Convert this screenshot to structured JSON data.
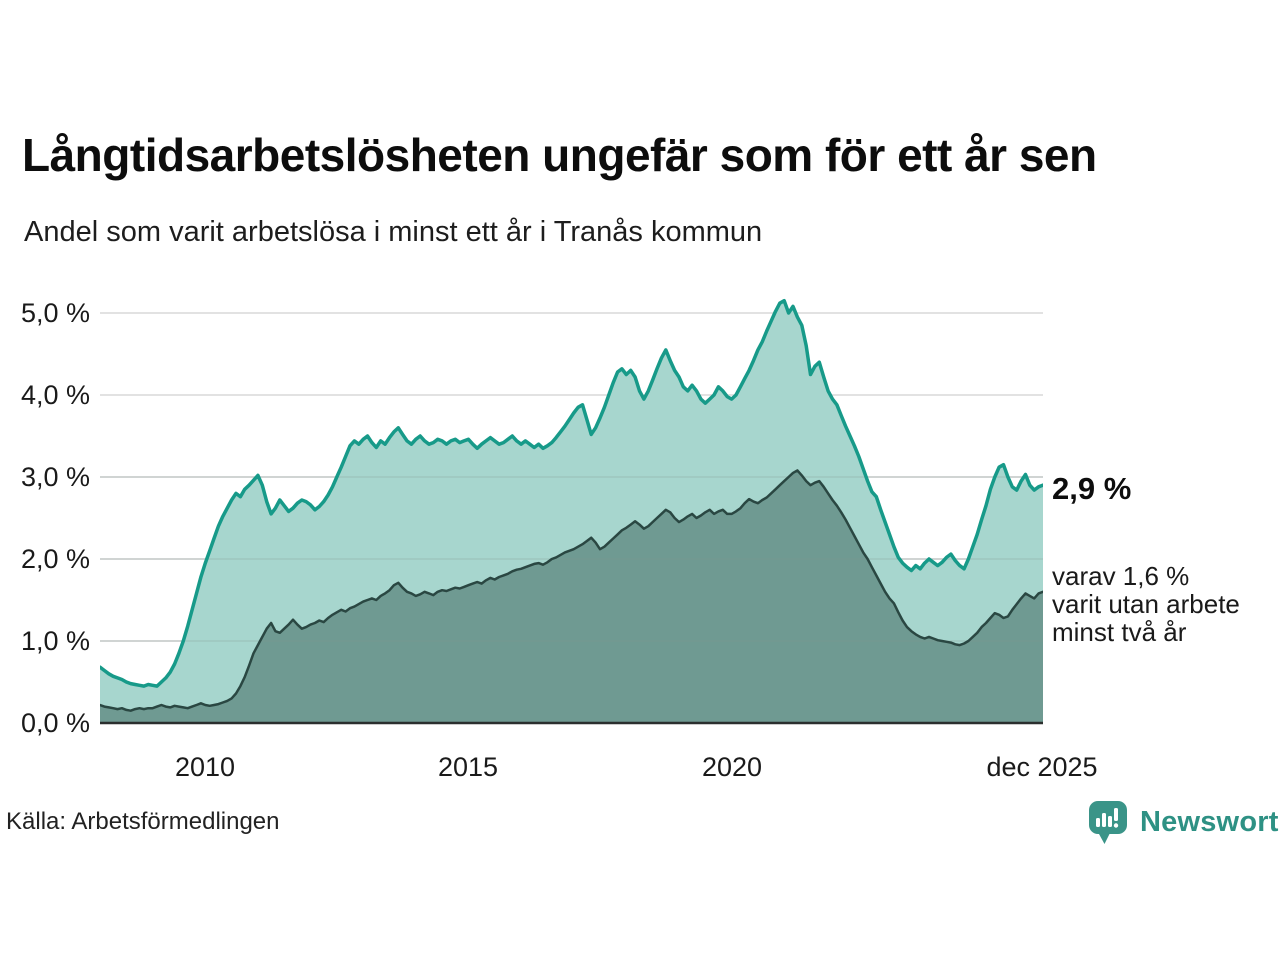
{
  "header": {
    "title": "Långtidsarbetslösheten ungefär som för ett år sen",
    "subtitle": "Andel som varit arbetslösa i minst ett år i Tranås kommun"
  },
  "chart": {
    "y_ticks": [
      "5,0 %",
      "4,0 %",
      "3,0 %",
      "2,0 %",
      "1,0 %",
      "0,0 %"
    ],
    "x_ticks": [
      "2010",
      "2015",
      "2020",
      "dec 2025"
    ],
    "annotations": {
      "latest_value": "2,9 %",
      "secondary_line1": "varav 1,6 %",
      "secondary_line2": "varit utan arbete",
      "secondary_line3": "minst två år"
    }
  },
  "footer": {
    "source": "Källa: Arbetsförmedlingen",
    "brand": "Newsworthy"
  },
  "colors": {
    "series1_line": "#179a89",
    "series1_fill": "#a7d6ce",
    "series2_line": "#2a4742",
    "series2_fill": "#6f9a92",
    "grid": "#d9d9d9",
    "grid_overlay": "rgba(130,150,145,0.25)",
    "axis": "#2b2f2e",
    "brand_teal": "#2e9184"
  },
  "chart_data": {
    "type": "area",
    "title": "Långtidsarbetslösheten ungefär som för ett år sen",
    "subtitle": "Andel som varit arbetslösa i minst ett år i Tranås kommun",
    "source": "Källa: Arbetsförmedlingen",
    "unit": "%",
    "frequency": "monthly",
    "x_start": "2008-01",
    "x_end": "2025-12",
    "x_tick_labels": [
      "2010",
      "2015",
      "2020",
      "dec 2025"
    ],
    "ylim": [
      0,
      5.4
    ],
    "grid": true,
    "legend_position": "right-annotations",
    "latest": {
      "minst_ett_ar": 2.9,
      "minst_tva_ar": 1.6
    },
    "series": [
      {
        "name": "Andel arbetslösa minst ett år",
        "line_color": "#179a89",
        "fill_color": "#a7d6ce",
        "line_width": 3.5,
        "values": [
          0.68,
          0.64,
          0.6,
          0.57,
          0.55,
          0.53,
          0.5,
          0.48,
          0.47,
          0.46,
          0.45,
          0.47,
          0.46,
          0.45,
          0.5,
          0.55,
          0.62,
          0.72,
          0.85,
          1.0,
          1.18,
          1.38,
          1.58,
          1.78,
          1.95,
          2.1,
          2.25,
          2.4,
          2.52,
          2.62,
          2.72,
          2.8,
          2.76,
          2.85,
          2.9,
          2.96,
          3.02,
          2.9,
          2.7,
          2.55,
          2.62,
          2.72,
          2.65,
          2.58,
          2.62,
          2.68,
          2.72,
          2.7,
          2.66,
          2.6,
          2.64,
          2.7,
          2.78,
          2.88,
          3.0,
          3.12,
          3.25,
          3.38,
          3.44,
          3.4,
          3.46,
          3.5,
          3.42,
          3.36,
          3.44,
          3.4,
          3.48,
          3.55,
          3.6,
          3.52,
          3.44,
          3.4,
          3.46,
          3.5,
          3.44,
          3.4,
          3.42,
          3.46,
          3.44,
          3.4,
          3.44,
          3.46,
          3.42,
          3.44,
          3.46,
          3.4,
          3.35,
          3.4,
          3.44,
          3.48,
          3.44,
          3.4,
          3.42,
          3.46,
          3.5,
          3.44,
          3.4,
          3.44,
          3.4,
          3.36,
          3.4,
          3.35,
          3.38,
          3.42,
          3.48,
          3.55,
          3.62,
          3.7,
          3.78,
          3.85,
          3.88,
          3.7,
          3.52,
          3.6,
          3.72,
          3.85,
          4.0,
          4.15,
          4.28,
          4.32,
          4.25,
          4.3,
          4.22,
          4.05,
          3.95,
          4.05,
          4.18,
          4.32,
          4.45,
          4.55,
          4.42,
          4.3,
          4.22,
          4.1,
          4.05,
          4.12,
          4.05,
          3.95,
          3.9,
          3.95,
          4.0,
          4.1,
          4.05,
          3.98,
          3.95,
          4.0,
          4.1,
          4.2,
          4.3,
          4.42,
          4.55,
          4.65,
          4.78,
          4.9,
          5.02,
          5.12,
          5.15,
          5.0,
          5.08,
          4.95,
          4.85,
          4.6,
          4.25,
          4.35,
          4.4,
          4.22,
          4.05,
          3.95,
          3.88,
          3.75,
          3.62,
          3.5,
          3.38,
          3.25,
          3.1,
          2.95,
          2.82,
          2.76,
          2.6,
          2.45,
          2.3,
          2.15,
          2.02,
          1.95,
          1.9,
          1.86,
          1.92,
          1.88,
          1.95,
          2.0,
          1.96,
          1.92,
          1.96,
          2.02,
          2.06,
          1.98,
          1.92,
          1.88,
          2.0,
          2.15,
          2.3,
          2.48,
          2.65,
          2.85,
          3.0,
          3.12,
          3.15,
          3.0,
          2.88,
          2.84,
          2.95,
          3.03,
          2.9,
          2.84,
          2.88,
          2.9
        ]
      },
      {
        "name": "varav utan arbete minst två år",
        "line_color": "#2a4742",
        "fill_color": "#6f9a92",
        "line_width": 2.5,
        "values": [
          0.22,
          0.2,
          0.19,
          0.18,
          0.17,
          0.18,
          0.16,
          0.15,
          0.17,
          0.18,
          0.17,
          0.18,
          0.18,
          0.2,
          0.22,
          0.2,
          0.19,
          0.21,
          0.2,
          0.19,
          0.18,
          0.2,
          0.22,
          0.24,
          0.22,
          0.21,
          0.22,
          0.23,
          0.25,
          0.27,
          0.3,
          0.36,
          0.45,
          0.56,
          0.7,
          0.85,
          0.95,
          1.05,
          1.15,
          1.22,
          1.12,
          1.1,
          1.15,
          1.2,
          1.26,
          1.2,
          1.15,
          1.17,
          1.2,
          1.22,
          1.25,
          1.23,
          1.28,
          1.32,
          1.35,
          1.38,
          1.36,
          1.4,
          1.42,
          1.45,
          1.48,
          1.5,
          1.52,
          1.5,
          1.55,
          1.58,
          1.62,
          1.68,
          1.71,
          1.65,
          1.6,
          1.58,
          1.55,
          1.57,
          1.6,
          1.58,
          1.56,
          1.6,
          1.62,
          1.61,
          1.63,
          1.65,
          1.64,
          1.66,
          1.68,
          1.7,
          1.72,
          1.7,
          1.74,
          1.77,
          1.75,
          1.78,
          1.8,
          1.82,
          1.85,
          1.87,
          1.88,
          1.9,
          1.92,
          1.94,
          1.95,
          1.93,
          1.96,
          2.0,
          2.02,
          2.05,
          2.08,
          2.1,
          2.12,
          2.15,
          2.18,
          2.22,
          2.26,
          2.2,
          2.12,
          2.15,
          2.2,
          2.25,
          2.3,
          2.35,
          2.38,
          2.42,
          2.46,
          2.42,
          2.37,
          2.4,
          2.45,
          2.5,
          2.55,
          2.6,
          2.57,
          2.5,
          2.45,
          2.48,
          2.52,
          2.55,
          2.5,
          2.53,
          2.57,
          2.6,
          2.55,
          2.58,
          2.6,
          2.55,
          2.55,
          2.58,
          2.62,
          2.68,
          2.73,
          2.7,
          2.68,
          2.72,
          2.75,
          2.8,
          2.85,
          2.9,
          2.95,
          3.0,
          3.05,
          3.08,
          3.02,
          2.95,
          2.9,
          2.93,
          2.95,
          2.88,
          2.8,
          2.72,
          2.65,
          2.57,
          2.48,
          2.38,
          2.28,
          2.18,
          2.08,
          2.0,
          1.9,
          1.8,
          1.7,
          1.6,
          1.52,
          1.46,
          1.35,
          1.25,
          1.17,
          1.12,
          1.08,
          1.05,
          1.03,
          1.05,
          1.03,
          1.01,
          1.0,
          0.99,
          0.98,
          0.96,
          0.95,
          0.97,
          1.0,
          1.05,
          1.1,
          1.17,
          1.22,
          1.28,
          1.34,
          1.32,
          1.28,
          1.3,
          1.38,
          1.45,
          1.52,
          1.58,
          1.55,
          1.52,
          1.58,
          1.6
        ]
      }
    ]
  }
}
